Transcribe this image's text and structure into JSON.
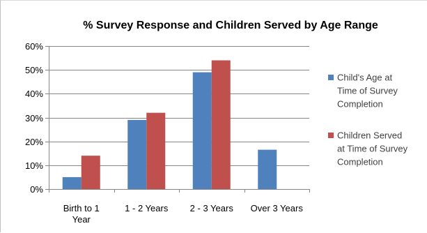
{
  "chart_data": {
    "type": "bar",
    "title": "% Survey Response and Children Served by Age Range",
    "xlabel": "",
    "ylabel": "",
    "ylim": [
      0,
      0.6
    ],
    "yticks": [
      "0%",
      "10%",
      "20%",
      "30%",
      "40%",
      "50%",
      "60%"
    ],
    "grid": true,
    "legend_position": "right",
    "categories": [
      [
        "Birth to 1",
        "Year"
      ],
      [
        "1 - 2 Years"
      ],
      [
        "2 - 3 Years"
      ],
      [
        "Over 3 Years"
      ]
    ],
    "series": [
      {
        "name": [
          "Child's Age at",
          "Time of Survey",
          "Completion"
        ],
        "color": "#4f81bd",
        "values": [
          0.05,
          0.29,
          0.49,
          0.165
        ]
      },
      {
        "name": [
          "Children Served",
          "at Time of Survey",
          "Completion"
        ],
        "color": "#c0504d",
        "values": [
          0.14,
          0.32,
          0.54,
          null
        ]
      }
    ]
  }
}
